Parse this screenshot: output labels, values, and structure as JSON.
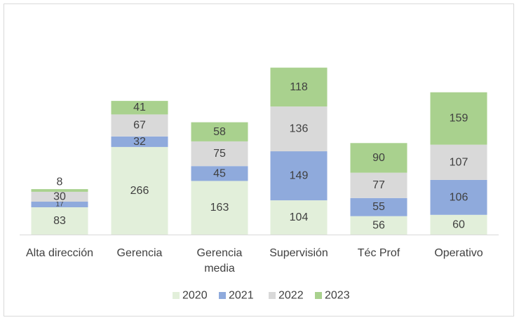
{
  "chart_data": {
    "type": "bar",
    "stacked": true,
    "title": "",
    "xlabel": "",
    "ylabel": "",
    "categories": [
      [
        "Alta dirección"
      ],
      [
        "Gerencia"
      ],
      [
        "Gerencia",
        "media"
      ],
      [
        "Supervisión"
      ],
      [
        "Téc Prof"
      ],
      [
        "Operativo"
      ]
    ],
    "series": [
      {
        "name": "2020",
        "color": "#e2efda",
        "values": [
          83,
          266,
          163,
          104,
          56,
          60
        ]
      },
      {
        "name": "2021",
        "color": "#8faadc",
        "values": [
          17,
          32,
          45,
          149,
          55,
          106
        ]
      },
      {
        "name": "2022",
        "color": "#d9d9d9",
        "values": [
          30,
          67,
          75,
          136,
          77,
          107
        ]
      },
      {
        "name": "2023",
        "color": "#a9d18e",
        "values": [
          8,
          41,
          58,
          118,
          90,
          159
        ]
      }
    ],
    "legend_position": "bottom",
    "grid": false,
    "data_labels": true
  }
}
